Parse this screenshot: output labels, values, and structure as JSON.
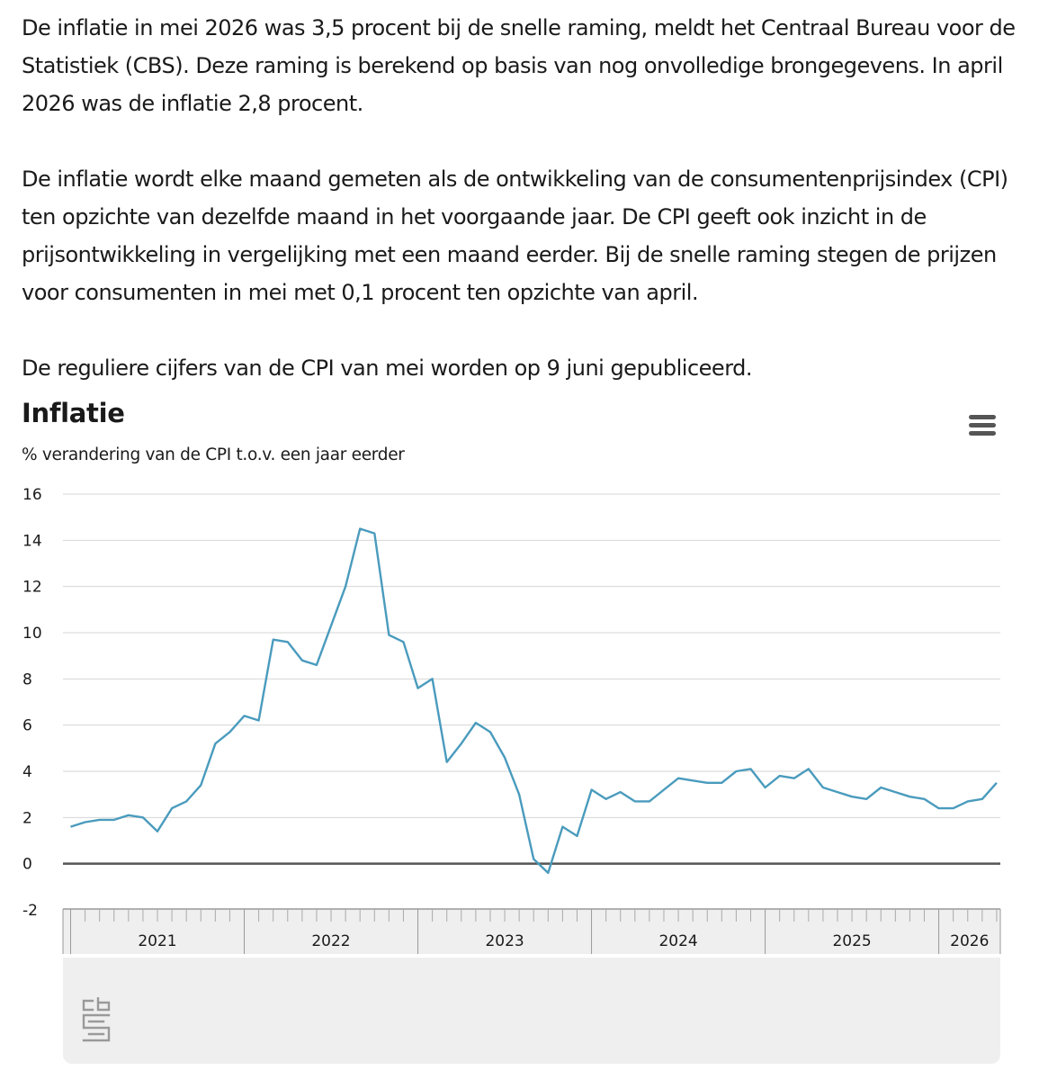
{
  "article": {
    "paragraphs": [
      "De inflatie in mei 2026 was 3,5 procent bij de snelle raming, meldt het Centraal Bureau voor de Statistiek (CBS). Deze raming is berekend op basis van nog onvolledige brongegevens. In april 2026 was de inflatie 2,8 procent.",
      "De inflatie wordt elke maand gemeten als de ontwikkeling van de consumentenprijsindex (CPI) ten opzichte van dezelfde maand in het voorgaande jaar. De CPI geeft ook inzicht in de prijsontwikkeling in vergelijking met een maand eerder. Bij de snelle raming stegen de prijzen voor consumenten in mei met 0,1 procent ten opzichte van april.",
      "De reguliere cijfers van de CPI van mei worden op 9 juni gepubliceerd."
    ]
  },
  "chart_data": {
    "type": "line",
    "title": "Inflatie",
    "subtitle": "% verandering van de CPI t.o.v. een jaar eerder",
    "xlabel": "",
    "ylabel": "",
    "ylim": [
      -2,
      16
    ],
    "yticks": [
      -2,
      0,
      2,
      4,
      6,
      8,
      10,
      12,
      14,
      16
    ],
    "x_start": "2021-01",
    "x_end": "2026-05",
    "x_tick_labels": [
      "2021",
      "2022",
      "2023",
      "2024",
      "2025",
      "2026"
    ],
    "grid": true,
    "legend": "none",
    "colors": {
      "line": "#4a9bbd",
      "zero_line": "#555555",
      "grid": "#d6d6d6",
      "panel": "#efefef"
    },
    "series": [
      {
        "values": [
          1.6,
          1.8,
          1.9,
          1.9,
          2.1,
          2.0,
          1.4,
          2.4,
          2.7,
          3.4,
          5.2,
          5.7,
          6.4,
          6.2,
          9.7,
          9.6,
          8.8,
          8.6,
          10.3,
          12.0,
          14.5,
          14.3,
          9.9,
          9.6,
          7.6,
          8.0,
          4.4,
          5.2,
          6.1,
          5.7,
          4.6,
          3.0,
          0.2,
          -0.4,
          1.6,
          1.2,
          3.2,
          2.8,
          3.1,
          2.7,
          2.7,
          3.2,
          3.7,
          3.6,
          3.5,
          3.5,
          4.0,
          4.1,
          3.3,
          3.8,
          3.7,
          4.1,
          3.3,
          3.1,
          2.9,
          2.8,
          3.3,
          3.1,
          2.9,
          2.8,
          2.4,
          2.4,
          2.7,
          2.8,
          3.5
        ]
      }
    ]
  },
  "toolbar": {
    "menu_icon": "hamburger-menu-icon"
  },
  "footer": {
    "logo": "cbs-logo-icon"
  }
}
